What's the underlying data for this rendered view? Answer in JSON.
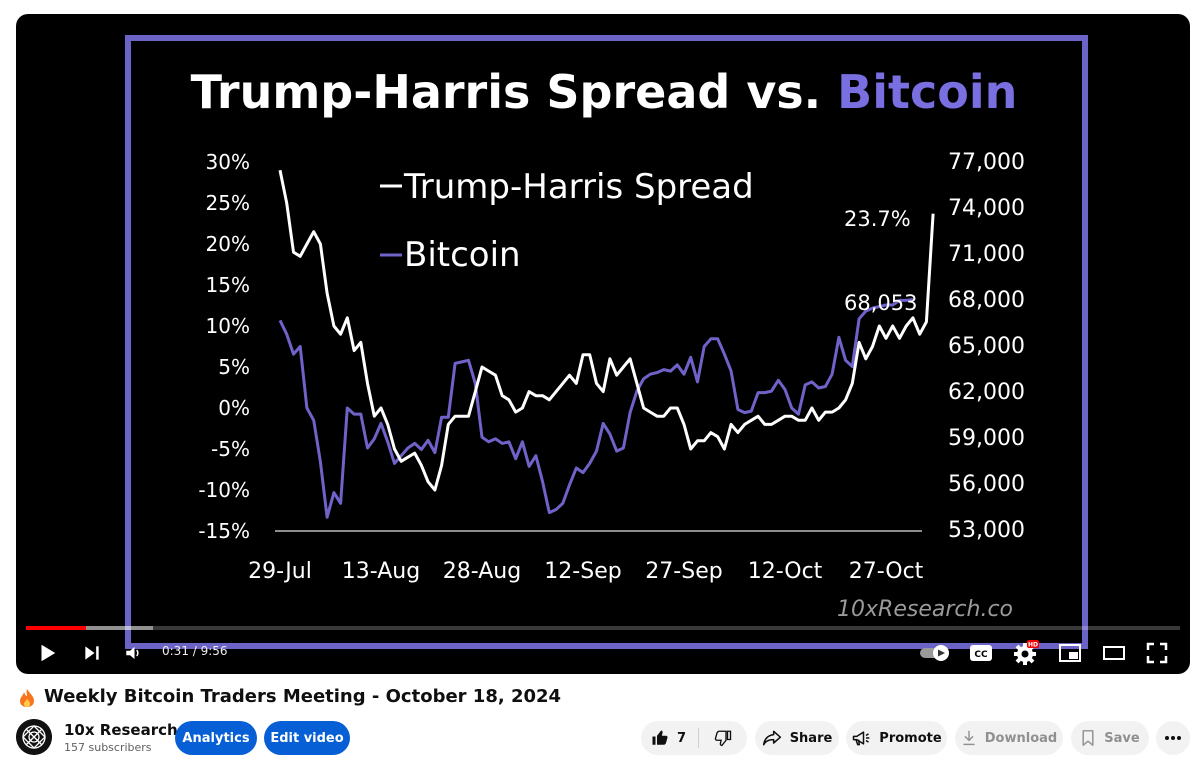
{
  "chart_data": {
    "type": "line",
    "title": "Trump-Harris Spread vs. ",
    "title_highlight": "Bitcoin",
    "watermark": "10xResearch.co",
    "x_tick_labels": [
      "29-Jul",
      "13-Aug",
      "28-Aug",
      "12-Sep",
      "27-Sep",
      "12-Oct",
      "27-Oct"
    ],
    "y_left_ticks": [
      "30%",
      "25%",
      "20%",
      "15%",
      "10%",
      "5%",
      "0%",
      "-5%",
      "-10%",
      "-15%"
    ],
    "y_right_ticks": [
      "77,000",
      "74,000",
      "71,000",
      "68,000",
      "65,000",
      "62,000",
      "59,000",
      "56,000",
      "53,000"
    ],
    "ylim_left": [
      -15,
      30
    ],
    "ylim_right": [
      53000,
      77000
    ],
    "grid": false,
    "legend_position": "top-left",
    "legend": [
      "Trump-Harris Spread",
      "Bitcoin"
    ],
    "series": [
      {
        "name": "Trump-Harris Spread",
        "axis": "left",
        "color": "#ffffff",
        "end_label": "23.7%",
        "points": [
          [
            "2024-07-29",
            29
          ],
          [
            "2024-07-30",
            25
          ],
          [
            "2024-07-31",
            19
          ],
          [
            "2024-08-01",
            18.5
          ],
          [
            "2024-08-02",
            20
          ],
          [
            "2024-08-03",
            21.5
          ],
          [
            "2024-08-04",
            20
          ],
          [
            "2024-08-05",
            14
          ],
          [
            "2024-08-06",
            10
          ],
          [
            "2024-08-07",
            9
          ],
          [
            "2024-08-08",
            11
          ],
          [
            "2024-08-09",
            7
          ],
          [
            "2024-08-10",
            8
          ],
          [
            "2024-08-11",
            3
          ],
          [
            "2024-08-12",
            -1
          ],
          [
            "2024-08-13",
            0
          ],
          [
            "2024-08-14",
            -2
          ],
          [
            "2024-08-15",
            -5
          ],
          [
            "2024-08-16",
            -6.5
          ],
          [
            "2024-08-17",
            -6
          ],
          [
            "2024-08-18",
            -5.5
          ],
          [
            "2024-08-19",
            -7
          ],
          [
            "2024-08-20",
            -9
          ],
          [
            "2024-08-21",
            -10
          ],
          [
            "2024-08-22",
            -7
          ],
          [
            "2024-08-23",
            -2
          ],
          [
            "2024-08-24",
            -1
          ],
          [
            "2024-08-25",
            -1
          ],
          [
            "2024-08-26",
            -1
          ],
          [
            "2024-08-27",
            2
          ],
          [
            "2024-08-28",
            5
          ],
          [
            "2024-08-29",
            4.5
          ],
          [
            "2024-08-30",
            4
          ],
          [
            "2024-08-31",
            1.5
          ],
          [
            "2024-09-01",
            1
          ],
          [
            "2024-09-02",
            -0.5
          ],
          [
            "2024-09-03",
            0
          ],
          [
            "2024-09-04",
            2
          ],
          [
            "2024-09-05",
            1.5
          ],
          [
            "2024-09-06",
            1.5
          ],
          [
            "2024-09-07",
            1
          ],
          [
            "2024-09-08",
            2
          ],
          [
            "2024-09-09",
            3
          ],
          [
            "2024-09-10",
            4
          ],
          [
            "2024-09-11",
            3
          ],
          [
            "2024-09-12",
            6.5
          ],
          [
            "2024-09-13",
            6.5
          ],
          [
            "2024-09-14",
            3
          ],
          [
            "2024-09-15",
            2
          ],
          [
            "2024-09-16",
            6
          ],
          [
            "2024-09-17",
            4
          ],
          [
            "2024-09-18",
            5
          ],
          [
            "2024-09-19",
            6
          ],
          [
            "2024-09-20",
            3
          ],
          [
            "2024-09-21",
            0
          ],
          [
            "2024-09-22",
            -0.5
          ],
          [
            "2024-09-23",
            -1
          ],
          [
            "2024-09-24",
            -1
          ],
          [
            "2024-09-25",
            0
          ],
          [
            "2024-09-26",
            0
          ],
          [
            "2024-09-27",
            -2
          ],
          [
            "2024-09-28",
            -5
          ],
          [
            "2024-09-29",
            -4
          ],
          [
            "2024-09-30",
            -4
          ],
          [
            "2024-10-01",
            -3
          ],
          [
            "2024-10-02",
            -3.5
          ],
          [
            "2024-10-03",
            -5
          ],
          [
            "2024-10-04",
            -2
          ],
          [
            "2024-10-05",
            -3
          ],
          [
            "2024-10-06",
            -2
          ],
          [
            "2024-10-07",
            -1.5
          ],
          [
            "2024-10-08",
            -1
          ],
          [
            "2024-10-09",
            -2
          ],
          [
            "2024-10-10",
            -2
          ],
          [
            "2024-10-11",
            -1.5
          ],
          [
            "2024-10-12",
            -1
          ],
          [
            "2024-10-13",
            -1
          ],
          [
            "2024-10-14",
            -1.5
          ],
          [
            "2024-10-15",
            -1.5
          ],
          [
            "2024-10-16",
            0
          ],
          [
            "2024-10-17",
            -1.5
          ],
          [
            "2024-10-18",
            -0.5
          ],
          [
            "2024-10-19",
            -0.5
          ],
          [
            "2024-10-20",
            0
          ],
          [
            "2024-10-21",
            1
          ],
          [
            "2024-10-22",
            3
          ],
          [
            "2024-10-23",
            8
          ],
          [
            "2024-10-24",
            6
          ],
          [
            "2024-10-25",
            7.5
          ],
          [
            "2024-10-26",
            10
          ],
          [
            "2024-10-27",
            8.5
          ],
          [
            "2024-10-28",
            10
          ],
          [
            "2024-10-29",
            8.5
          ],
          [
            "2024-10-30",
            10
          ],
          [
            "2024-10-31",
            11
          ],
          [
            "2024-11-01",
            9
          ],
          [
            "2024-11-02",
            10.5
          ],
          [
            "2024-11-03",
            23.7
          ]
        ]
      },
      {
        "name": "Bitcoin",
        "axis": "right",
        "color": "#6f63c9",
        "end_label": "68,053",
        "points": [
          [
            "2024-07-29",
            66700
          ],
          [
            "2024-07-30",
            65800
          ],
          [
            "2024-07-31",
            64500
          ],
          [
            "2024-08-01",
            65000
          ],
          [
            "2024-08-02",
            61000
          ],
          [
            "2024-08-03",
            60200
          ],
          [
            "2024-08-04",
            57500
          ],
          [
            "2024-08-05",
            53900
          ],
          [
            "2024-08-06",
            55500
          ],
          [
            "2024-08-07",
            54800
          ],
          [
            "2024-08-08",
            61000
          ],
          [
            "2024-08-09",
            60600
          ],
          [
            "2024-08-10",
            60600
          ],
          [
            "2024-08-11",
            58400
          ],
          [
            "2024-08-12",
            59000
          ],
          [
            "2024-08-13",
            60000
          ],
          [
            "2024-08-14",
            58800
          ],
          [
            "2024-08-15",
            57400
          ],
          [
            "2024-08-16",
            57900
          ],
          [
            "2024-08-17",
            58400
          ],
          [
            "2024-08-18",
            58700
          ],
          [
            "2024-08-19",
            58300
          ],
          [
            "2024-08-20",
            58900
          ],
          [
            "2024-08-21",
            58100
          ],
          [
            "2024-08-22",
            60400
          ],
          [
            "2024-08-23",
            60400
          ],
          [
            "2024-08-24",
            63900
          ],
          [
            "2024-08-25",
            64000
          ],
          [
            "2024-08-26",
            64100
          ],
          [
            "2024-08-27",
            62600
          ],
          [
            "2024-08-28",
            59100
          ],
          [
            "2024-08-29",
            58800
          ],
          [
            "2024-08-30",
            59000
          ],
          [
            "2024-08-31",
            58700
          ],
          [
            "2024-09-01",
            58800
          ],
          [
            "2024-09-02",
            57700
          ],
          [
            "2024-09-03",
            58800
          ],
          [
            "2024-09-04",
            57200
          ],
          [
            "2024-09-05",
            57900
          ],
          [
            "2024-09-06",
            56200
          ],
          [
            "2024-09-07",
            54200
          ],
          [
            "2024-09-08",
            54400
          ],
          [
            "2024-09-09",
            54800
          ],
          [
            "2024-09-10",
            56000
          ],
          [
            "2024-09-11",
            57100
          ],
          [
            "2024-09-12",
            56800
          ],
          [
            "2024-09-13",
            57400
          ],
          [
            "2024-09-14",
            58200
          ],
          [
            "2024-09-15",
            60000
          ],
          [
            "2024-09-16",
            59300
          ],
          [
            "2024-09-17",
            58200
          ],
          [
            "2024-09-18",
            58400
          ],
          [
            "2024-09-19",
            60700
          ],
          [
            "2024-09-20",
            62100
          ],
          [
            "2024-09-21",
            62900
          ],
          [
            "2024-09-22",
            63200
          ],
          [
            "2024-09-23",
            63300
          ],
          [
            "2024-09-24",
            63500
          ],
          [
            "2024-09-25",
            63400
          ],
          [
            "2024-09-26",
            63800
          ],
          [
            "2024-09-27",
            63200
          ],
          [
            "2024-09-28",
            64300
          ],
          [
            "2024-09-29",
            62700
          ],
          [
            "2024-09-30",
            65000
          ],
          [
            "2024-10-01",
            65500
          ],
          [
            "2024-10-02",
            65500
          ],
          [
            "2024-10-03",
            64500
          ],
          [
            "2024-10-04",
            63400
          ],
          [
            "2024-10-05",
            60900
          ],
          [
            "2024-10-06",
            60700
          ],
          [
            "2024-10-07",
            60800
          ],
          [
            "2024-10-08",
            62000
          ],
          [
            "2024-10-09",
            62000
          ],
          [
            "2024-10-10",
            62100
          ],
          [
            "2024-10-11",
            62800
          ],
          [
            "2024-10-12",
            62200
          ],
          [
            "2024-10-13",
            61000
          ],
          [
            "2024-10-14",
            60600
          ],
          [
            "2024-10-15",
            62500
          ],
          [
            "2024-10-16",
            62700
          ],
          [
            "2024-10-17",
            62300
          ],
          [
            "2024-10-18",
            62400
          ],
          [
            "2024-10-19",
            63200
          ],
          [
            "2024-10-20",
            65600
          ],
          [
            "2024-10-21",
            64100
          ],
          [
            "2024-10-22",
            63700
          ],
          [
            "2024-10-23",
            66800
          ],
          [
            "2024-10-24",
            67300
          ],
          [
            "2024-10-25",
            67500
          ],
          [
            "2024-10-26",
            67600
          ],
          [
            "2024-10-27",
            67700
          ],
          [
            "2024-10-28",
            67700
          ],
          [
            "2024-10-29",
            68000
          ],
          [
            "2024-10-30",
            68000
          ],
          [
            "2024-10-31",
            68053
          ]
        ]
      }
    ]
  },
  "player": {
    "time_display": "0:31 / 9:56",
    "progress_played": 0.052,
    "progress_buffered": 0.11,
    "hd_badge": "HD",
    "cc_label": "CC",
    "colors": {
      "played": "#ff0000",
      "frame": "#6b63c6",
      "accent": "#7a6fe0"
    }
  },
  "video": {
    "title": "Weekly Bitcoin Traders Meeting - October 18, 2024",
    "title_icon": "fire-icon"
  },
  "channel": {
    "name": "10x Research",
    "subscribers": "157 subscribers"
  },
  "actions": {
    "analytics_label": "Analytics",
    "edit_video_label": "Edit video",
    "like_count": "7",
    "share_label": "Share",
    "promote_label": "Promote",
    "download_label": "Download",
    "save_label": "Save"
  }
}
